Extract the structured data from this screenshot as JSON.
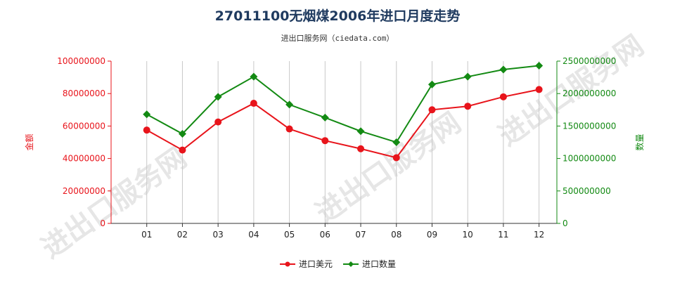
{
  "title": "27011100无烟煤2006年进口月度走势",
  "subtitle": "进出口服务网（ciedata.com）",
  "watermark": "进出口服务网",
  "colors": {
    "left_axis": "#e8141b",
    "right_axis": "#138a13",
    "grid": "#c8c8c8",
    "watermark": "#e6e6e6"
  },
  "chart_data": {
    "type": "line",
    "categories": [
      "01",
      "02",
      "03",
      "04",
      "05",
      "06",
      "07",
      "08",
      "09",
      "10",
      "11",
      "12"
    ],
    "series": [
      {
        "name": "进口美元",
        "axis": "left",
        "marker": "circle",
        "color": "#e8141b",
        "values": [
          57500000,
          45200000,
          62500000,
          74000000,
          58200000,
          51000000,
          46000000,
          40500000,
          70000000,
          72200000,
          78000000,
          82500000
        ]
      },
      {
        "name": "进口数量",
        "axis": "right",
        "marker": "diamond",
        "color": "#138a13",
        "values": [
          1680000000,
          1380000000,
          1950000000,
          2260000000,
          1830000000,
          1630000000,
          1420000000,
          1250000000,
          2140000000,
          2260000000,
          2370000000,
          2430000000
        ]
      }
    ],
    "y_left": {
      "label": "金额",
      "lim": [
        0,
        100000000
      ],
      "ticks": [
        "0",
        "20000000",
        "40000000",
        "60000000",
        "80000000",
        "100000000"
      ]
    },
    "y_right": {
      "label": "数量",
      "lim": [
        0,
        2500000000
      ],
      "ticks": [
        "0",
        "500000000",
        "1000000000",
        "1500000000",
        "2000000000",
        "2500000000"
      ]
    },
    "grid": "vertical",
    "legend_position": "bottom-center"
  }
}
